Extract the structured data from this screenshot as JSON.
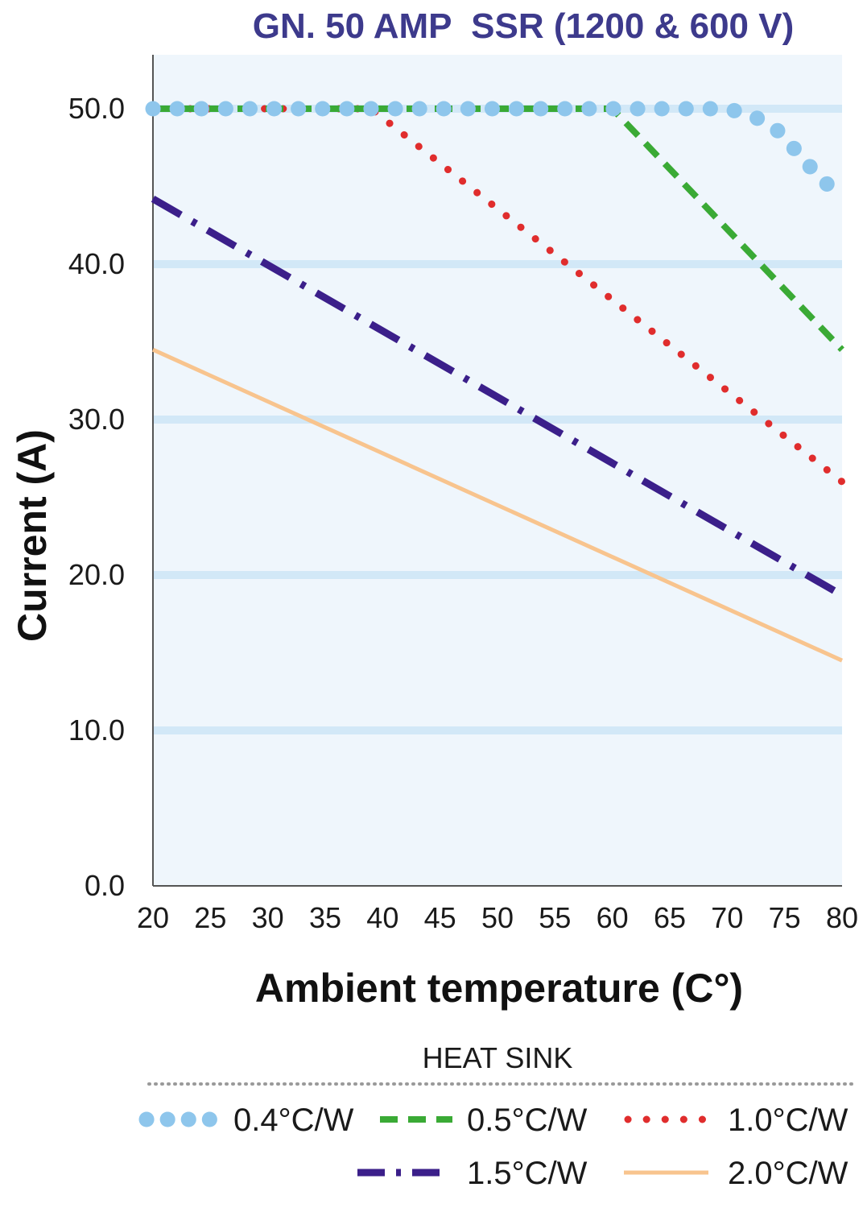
{
  "chart_data": {
    "type": "line",
    "title": "GN. 50 AMP  SSR (1200 & 600 V)",
    "xlabel": "Ambient temperature (C°)",
    "ylabel": "Current (A)",
    "xlim": [
      20,
      80
    ],
    "ylim": [
      0,
      53
    ],
    "x_ticks": [
      "20",
      "25",
      "30",
      "35",
      "40",
      "45",
      "50",
      "55",
      "60",
      "65",
      "70",
      "75",
      "80"
    ],
    "y_ticks": [
      "0.0",
      "10.0",
      "20.0",
      "30.0",
      "40.0",
      "50.0"
    ],
    "grid": true,
    "legend": {
      "title": "HEAT SINK",
      "position": "bottom"
    },
    "series": [
      {
        "name": "0.4°C/W",
        "color": "#8ec6ec",
        "style": "dots-large",
        "x": [
          20,
          70,
          72,
          74,
          76,
          78,
          80
        ],
        "y": [
          50,
          50,
          49.6,
          48.9,
          47.3,
          45.6,
          44.3
        ]
      },
      {
        "name": "0.5°C/W",
        "color": "#3aaa35",
        "style": "dashed",
        "x": [
          20,
          60,
          80
        ],
        "y": [
          50,
          50,
          34.5
        ]
      },
      {
        "name": "1.0°C/W",
        "color": "#e02d2d",
        "style": "dotted",
        "x": [
          20,
          39,
          80
        ],
        "y": [
          50,
          50,
          26
        ]
      },
      {
        "name": "1.5°C/W",
        "color": "#3b1f8a",
        "style": "dash-dot",
        "x": [
          20,
          80
        ],
        "y": [
          44.2,
          18.7
        ]
      },
      {
        "name": "2.0°C/W",
        "color": "#f8c48e",
        "style": "solid",
        "x": [
          20,
          80
        ],
        "y": [
          34.5,
          14.5
        ]
      }
    ]
  }
}
